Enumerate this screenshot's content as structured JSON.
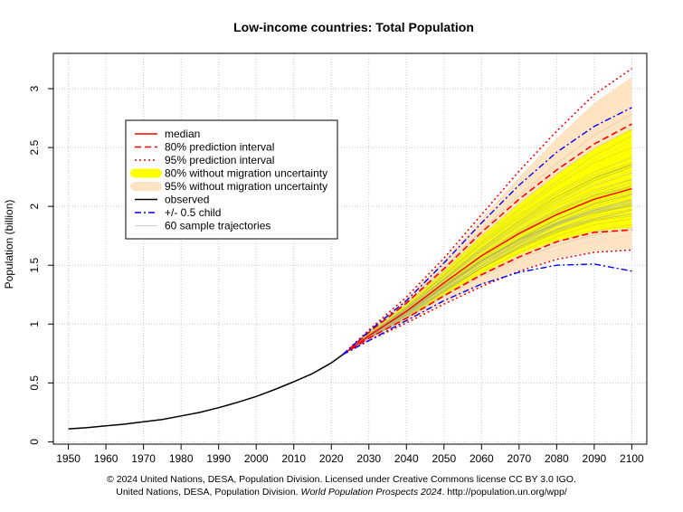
{
  "chart_data": {
    "type": "line",
    "title": "Low-income countries: Total Population",
    "xlabel": "",
    "ylabel": "Population (billion)",
    "xlim": [
      1946,
      2104
    ],
    "ylim": [
      -0.02,
      3.3
    ],
    "xticks": [
      1950,
      1960,
      1970,
      1980,
      1990,
      2000,
      2010,
      2020,
      2030,
      2040,
      2050,
      2060,
      2070,
      2080,
      2090,
      2100
    ],
    "yticks": [
      0,
      0.5,
      1,
      1.5,
      2,
      2.5,
      3
    ],
    "ytick_labels": [
      "0",
      "0.5",
      "1",
      "1.5",
      "2",
      "2.5",
      "3"
    ],
    "grid": true,
    "legend_position": "top-left",
    "legend": [
      {
        "label": "median",
        "color": "#ff0000",
        "style": "solid"
      },
      {
        "label": "80% prediction interval",
        "color": "#ff0000",
        "style": "dashed"
      },
      {
        "label": "95% prediction interval",
        "color": "#ff0000",
        "style": "dotted"
      },
      {
        "label": "80% without migration uncertainty",
        "color": "#ffff00",
        "style": "band"
      },
      {
        "label": "95% without migration uncertainty",
        "color": "#ffe4c4",
        "style": "band"
      },
      {
        "label": "observed",
        "color": "#000000",
        "style": "solid"
      },
      {
        "label": "+/- 0.5 child",
        "color": "#0000ff",
        "style": "dashdot"
      },
      {
        "label": "60 sample trajectories",
        "color": "#bebebe",
        "style": "thin"
      }
    ],
    "x_proj": [
      2023,
      2030,
      2040,
      2050,
      2060,
      2070,
      2080,
      2090,
      2100
    ],
    "series": [
      {
        "name": "observed",
        "x": [
          1950,
          1955,
          1960,
          1965,
          1970,
          1975,
          1980,
          1985,
          1990,
          1995,
          2000,
          2005,
          2010,
          2015,
          2020,
          2023
        ],
        "values": [
          0.11,
          0.12,
          0.135,
          0.15,
          0.17,
          0.19,
          0.22,
          0.25,
          0.29,
          0.335,
          0.385,
          0.445,
          0.51,
          0.58,
          0.67,
          0.74
        ]
      },
      {
        "name": "median",
        "values": [
          0.74,
          0.9,
          1.11,
          1.35,
          1.58,
          1.77,
          1.93,
          2.06,
          2.15
        ]
      },
      {
        "name": "80% prediction interval",
        "values": [
          0.74,
          0.93,
          1.18,
          1.47,
          1.78,
          2.06,
          2.31,
          2.53,
          2.7
        ]
      },
      {
        "name": "80% prediction interval",
        "values": [
          0.74,
          0.88,
          1.05,
          1.24,
          1.42,
          1.57,
          1.7,
          1.78,
          1.8
        ]
      },
      {
        "name": "95% prediction interval",
        "values": [
          0.74,
          0.95,
          1.23,
          1.56,
          1.93,
          2.3,
          2.64,
          2.95,
          3.17
        ]
      },
      {
        "name": "95% prediction interval",
        "values": [
          0.74,
          0.86,
          1.01,
          1.17,
          1.32,
          1.45,
          1.55,
          1.61,
          1.63
        ]
      },
      {
        "name": "80% without migration uncertainty",
        "band": true,
        "upper": [
          0.74,
          0.93,
          1.17,
          1.45,
          1.75,
          2.02,
          2.27,
          2.49,
          2.66
        ],
        "lower": [
          0.74,
          0.88,
          1.06,
          1.25,
          1.43,
          1.59,
          1.71,
          1.79,
          1.82
        ]
      },
      {
        "name": "95% without migration uncertainty",
        "band": true,
        "upper": [
          0.74,
          0.95,
          1.22,
          1.54,
          1.9,
          2.25,
          2.58,
          2.88,
          3.1
        ],
        "lower": [
          0.74,
          0.86,
          1.02,
          1.18,
          1.33,
          1.46,
          1.56,
          1.62,
          1.64
        ]
      },
      {
        "name": "+/- 0.5 child",
        "values": [
          0.74,
          0.94,
          1.2,
          1.52,
          1.86,
          2.18,
          2.46,
          2.68,
          2.84
        ]
      },
      {
        "name": "+/- 0.5 child",
        "values": [
          0.74,
          0.86,
          1.03,
          1.2,
          1.34,
          1.44,
          1.5,
          1.51,
          1.45
        ]
      }
    ]
  },
  "caption": {
    "line1": "© 2024 United Nations, DESA, Population Division. Licensed under Creative Commons license CC BY 3.0 IGO.",
    "line2_prefix": "United Nations, DESA, Population Division. ",
    "line2_italic": "World Population Prospects 2024",
    "line2_suffix": ". http://population.un.org/wpp/"
  }
}
